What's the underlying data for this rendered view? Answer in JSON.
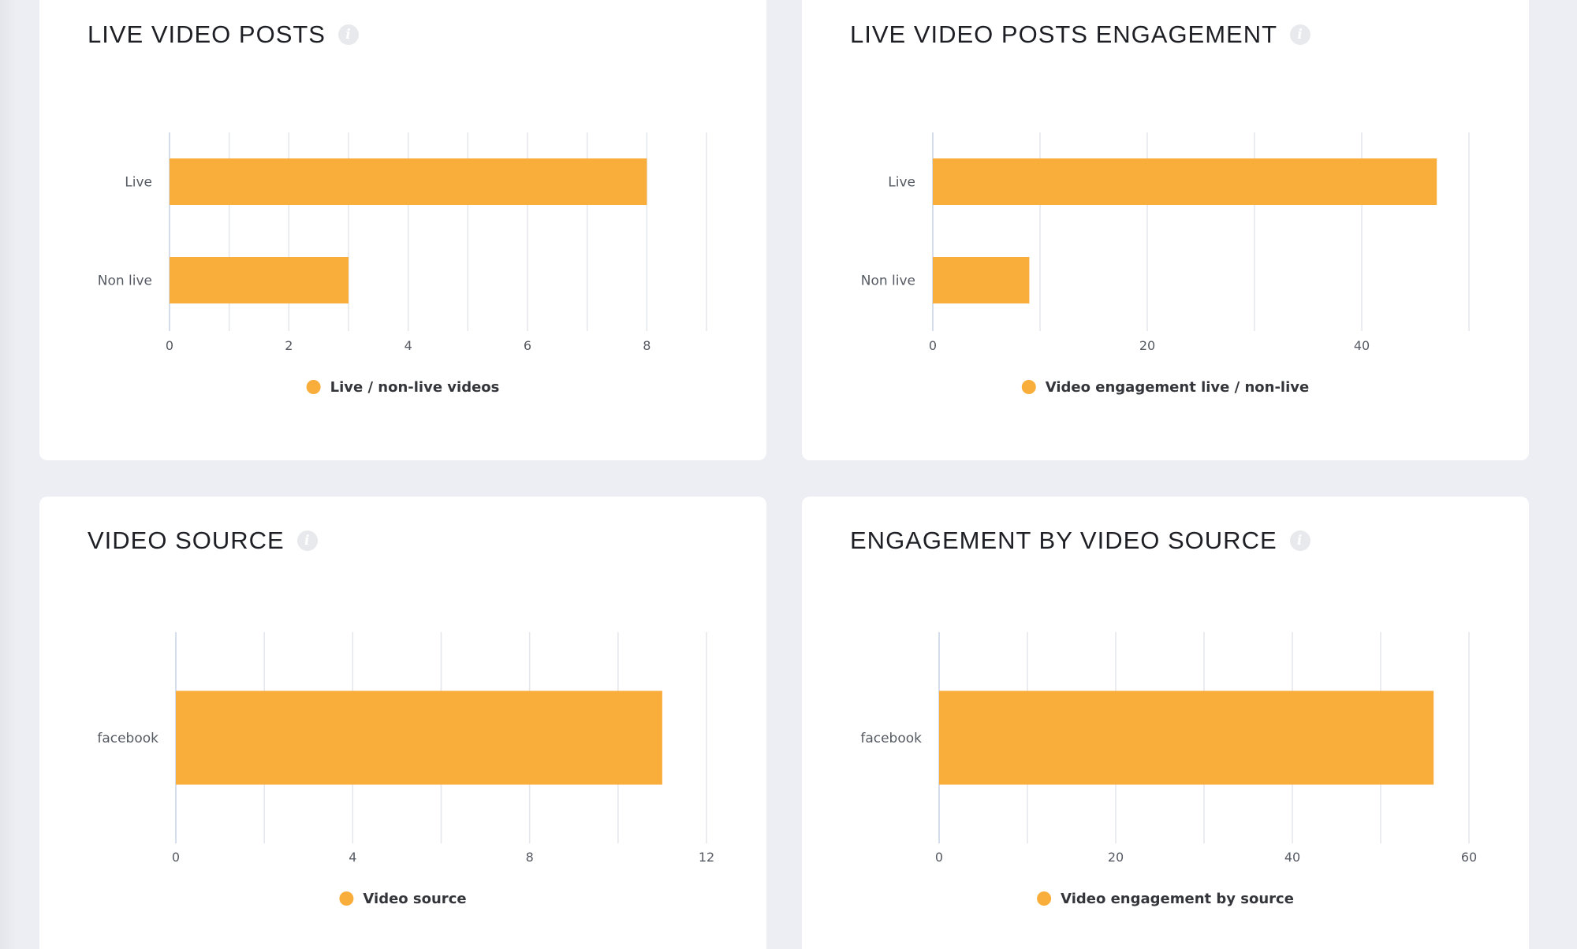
{
  "colors": {
    "bar": "#f9ae3b",
    "grid": "#e3e6eb",
    "axis": "#c7d0e3"
  },
  "cards": [
    {
      "title": "LIVE VIDEO POSTS",
      "info_icon": "info-icon",
      "chart_data": {
        "type": "bar",
        "orientation": "horizontal",
        "categories": [
          "Live",
          "Non live"
        ],
        "series": [
          {
            "name": "Live / non-live videos",
            "values": [
              8,
              3
            ]
          }
        ],
        "xlim": [
          0,
          9
        ],
        "xticks": [
          0,
          2,
          4,
          6,
          8
        ],
        "grid_step": 1,
        "grid": true,
        "legend": "bottom-center"
      }
    },
    {
      "title": "LIVE VIDEO POSTS ENGAGEMENT",
      "info_icon": "info-icon",
      "chart_data": {
        "type": "bar",
        "orientation": "horizontal",
        "categories": [
          "Live",
          "Non live"
        ],
        "series": [
          {
            "name": "Video engagement live / non-live",
            "values": [
              47,
              9
            ]
          }
        ],
        "xlim": [
          0,
          50
        ],
        "xticks": [
          0,
          20,
          40
        ],
        "grid_step": 10,
        "grid": true,
        "legend": "bottom-center"
      }
    },
    {
      "title": "VIDEO SOURCE",
      "info_icon": "info-icon",
      "chart_data": {
        "type": "bar",
        "orientation": "horizontal",
        "categories": [
          "facebook"
        ],
        "series": [
          {
            "name": "Video source",
            "values": [
              11
            ]
          }
        ],
        "xlim": [
          0,
          12
        ],
        "xticks": [
          0,
          4,
          8,
          12
        ],
        "grid_step": 2,
        "grid": true,
        "legend": "bottom-center"
      }
    },
    {
      "title": "ENGAGEMENT BY VIDEO SOURCE",
      "info_icon": "info-icon",
      "chart_data": {
        "type": "bar",
        "orientation": "horizontal",
        "categories": [
          "facebook"
        ],
        "series": [
          {
            "name": "Video engagement by source",
            "values": [
              56
            ]
          }
        ],
        "xlim": [
          0,
          60
        ],
        "xticks": [
          0,
          20,
          40,
          60
        ],
        "grid_step": 10,
        "grid": true,
        "legend": "bottom-center"
      }
    }
  ]
}
